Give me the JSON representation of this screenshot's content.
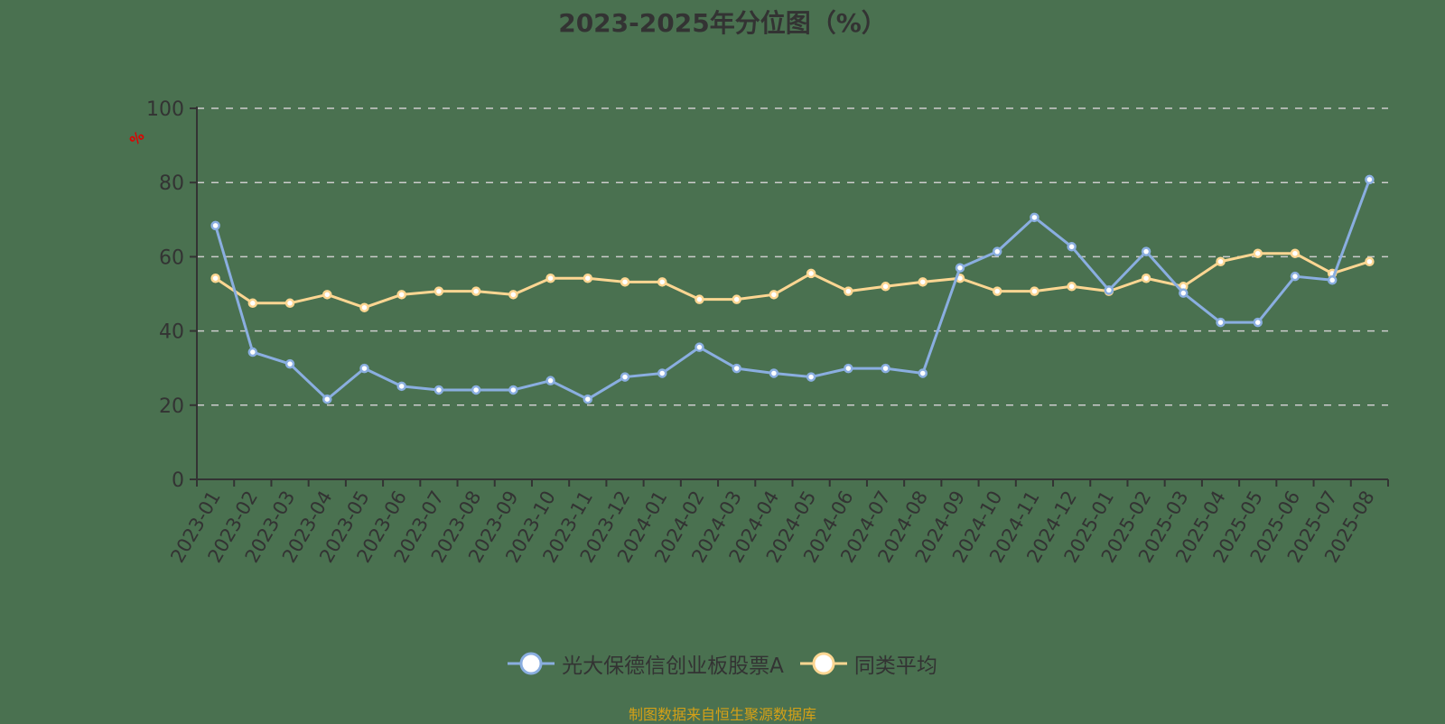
{
  "title": "2023-2025年分位图（%）",
  "footer": "制图数据来自恒生聚源数据库",
  "colors": {
    "background": "#4a7150",
    "fund": "#8aaee0",
    "average": "#fdd692",
    "axis": "#333333",
    "grid": "#cccccc",
    "unit": "#e00000",
    "footer": "#d4a017"
  },
  "legend": [
    {
      "name": "光大保德信创业板股票A",
      "color": "#8aaee0"
    },
    {
      "name": "同类平均",
      "color": "#fdd692"
    }
  ],
  "chart_data": {
    "type": "line",
    "title": "2023-2025年分位图（%）",
    "xlabel": "",
    "ylabel": "%",
    "ylim": [
      0,
      100
    ],
    "yticks": [
      0,
      20,
      40,
      60,
      80,
      100
    ],
    "grid": true,
    "legend_position": "bottom",
    "categories": [
      "2023-01",
      "2023-02",
      "2023-03",
      "2023-04",
      "2023-05",
      "2023-06",
      "2023-07",
      "2023-08",
      "2023-09",
      "2023-10",
      "2023-11",
      "2023-12",
      "2024-01",
      "2024-02",
      "2024-03",
      "2024-04",
      "2024-05",
      "2024-06",
      "2024-07",
      "2024-08",
      "2024-09",
      "2024-10",
      "2024-11",
      "2024-12",
      "2025-01",
      "2025-02",
      "2025-03",
      "2025-04",
      "2025-05",
      "2025-06",
      "2025-07",
      "2025-08"
    ],
    "series": [
      {
        "name": "光大保德信创业板股票A",
        "color": "#8aaee0",
        "values": [
          68.4,
          34.3,
          31.1,
          21.6,
          29.9,
          25.1,
          24.1,
          24.1,
          24.1,
          26.6,
          21.6,
          27.6,
          28.6,
          35.6,
          29.9,
          28.6,
          27.6,
          29.9,
          29.9,
          28.6,
          57.0,
          61.4,
          70.6,
          62.7,
          51.0,
          61.4,
          50.2,
          42.3,
          42.3,
          54.7,
          53.7,
          80.8
        ]
      },
      {
        "name": "同类平均",
        "color": "#fdd692",
        "values": [
          54.2,
          47.5,
          47.5,
          49.8,
          46.3,
          49.8,
          50.7,
          50.7,
          49.8,
          54.2,
          54.2,
          53.2,
          53.2,
          48.5,
          48.5,
          49.8,
          55.5,
          50.7,
          52.0,
          53.2,
          54.2,
          50.7,
          50.7,
          52.0,
          50.7,
          54.2,
          52.0,
          58.7,
          60.9,
          60.9,
          55.5,
          58.7
        ]
      }
    ]
  }
}
